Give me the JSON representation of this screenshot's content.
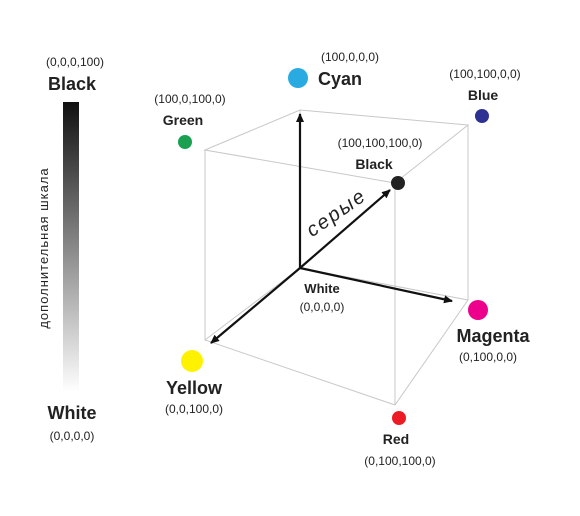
{
  "scale": {
    "top_coords": "(0,0,0,100)",
    "top_label": "Black",
    "caption": "дополнительная шкала",
    "bottom_label": "White",
    "bottom_coords": "(0,0,0,0)"
  },
  "gray_axis": "серые",
  "nodes": [
    {
      "label": "Cyan",
      "coords": "(100,0,0,0)"
    },
    {
      "label": "Blue",
      "coords": "(100,100,0,0)"
    },
    {
      "label": "Green",
      "coords": "(100,0,100,0)"
    },
    {
      "label": "Black",
      "coords": "(100,100,100,0)"
    },
    {
      "label": "White",
      "coords": "(0,0,0,0)"
    },
    {
      "label": "Magenta",
      "coords": "(0,100,0,0)"
    },
    {
      "label": "Yellow",
      "coords": "(0,0,100,0)"
    },
    {
      "label": "Red",
      "coords": "(0,100,100,0)"
    }
  ]
}
